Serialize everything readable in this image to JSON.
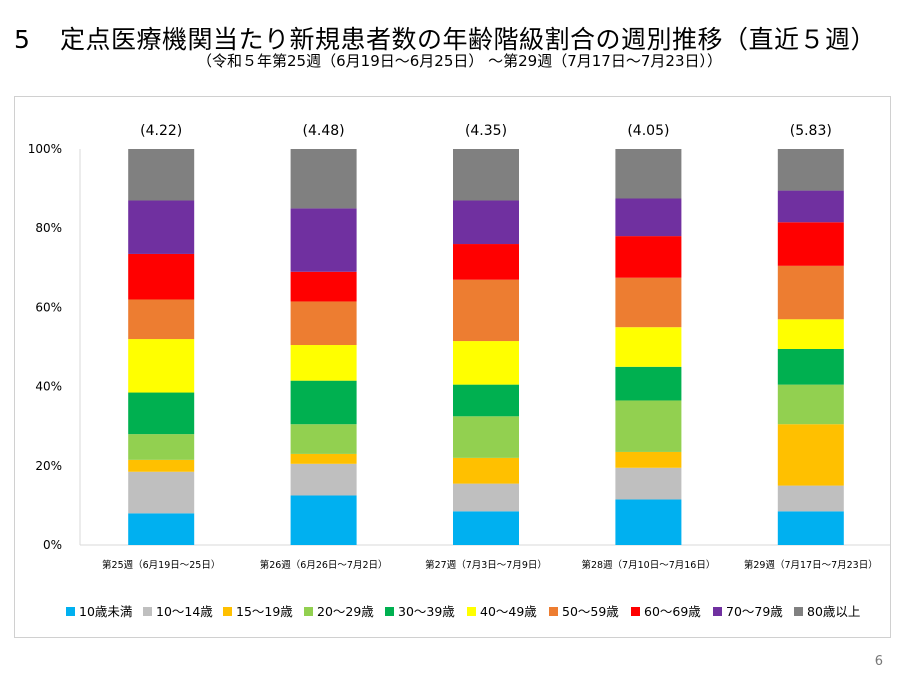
{
  "header": {
    "number": "5",
    "title": "定点医療機関当たり新規患者数の年齢階級割合の週別推移（直近５週）",
    "subtitle": "（令和５年第25週（6月19日～6月25日） ～第29週（7月17日～7月23日））"
  },
  "page_number": "6",
  "chart_data": {
    "type": "bar",
    "stacked": true,
    "percent": true,
    "categories": [
      "第25週（6月19日～25日）",
      "第26週（6月26日～7月2日）",
      "第27週（7月3日～7月9日）",
      "第28週（7月10日～7月16日）",
      "第29週（7月17日～7月23日）"
    ],
    "bar_top_labels": [
      "(4.22)",
      "(4.48)",
      "(4.35)",
      "(4.05)",
      "(5.83)"
    ],
    "y_ticks": [
      "0%",
      "20%",
      "40%",
      "60%",
      "80%",
      "100%"
    ],
    "ylim": [
      0,
      100
    ],
    "grid": false,
    "legend_position": "bottom",
    "series": [
      {
        "name": "10歳未満",
        "color": "#00b0f0",
        "values": [
          8,
          12.5,
          8.5,
          11.5,
          8.5
        ]
      },
      {
        "name": "10～14歳",
        "color": "#bfbfbf",
        "values": [
          10.5,
          8,
          7,
          8,
          6.5
        ]
      },
      {
        "name": "15～19歳",
        "color": "#ffc000",
        "values": [
          3,
          2.5,
          6.5,
          4,
          15.5
        ]
      },
      {
        "name": "20～29歳",
        "color": "#92d050",
        "values": [
          6.5,
          7.5,
          10.5,
          13,
          10
        ]
      },
      {
        "name": "30～39歳",
        "color": "#00b050",
        "values": [
          10.5,
          11,
          8,
          8.5,
          9
        ]
      },
      {
        "name": "40～49歳",
        "color": "#ffff00",
        "values": [
          13.5,
          9,
          11,
          10,
          7.5
        ]
      },
      {
        "name": "50～59歳",
        "color": "#ed7d31",
        "values": [
          10,
          11,
          15.5,
          12.5,
          13.5
        ]
      },
      {
        "name": "60～69歳",
        "color": "#ff0000",
        "values": [
          11.5,
          7.5,
          9,
          10.5,
          11
        ]
      },
      {
        "name": "70～79歳",
        "color": "#7030a0",
        "values": [
          13.5,
          16,
          11,
          9.5,
          8
        ]
      },
      {
        "name": "80歳以上",
        "color": "#808080",
        "values": [
          13,
          15,
          13,
          12.5,
          10.5
        ]
      }
    ]
  }
}
